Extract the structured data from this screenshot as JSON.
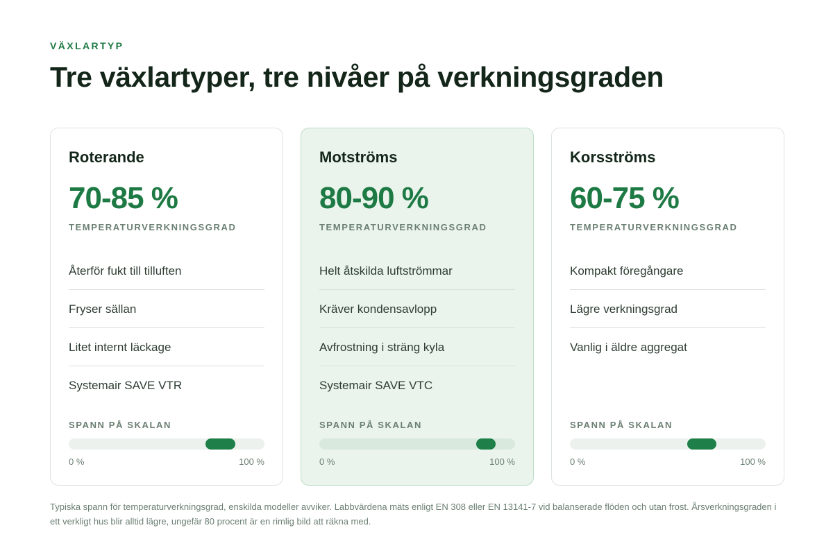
{
  "header": {
    "eyebrow": "VÄXLARTYP",
    "title": "Tre växlartyper, tre nivåer på verkningsgraden"
  },
  "cards": [
    {
      "title": "Roterande",
      "value": "70-85 %",
      "metric_label": "TEMPERATURVERKNINGSGRAD",
      "features": [
        "Återför fukt till tilluften",
        "Fryser sällan",
        "Litet internt läckage",
        "Systemair SAVE VTR"
      ],
      "scale_label": "SPANN PÅ SKALAN",
      "range_min": 70,
      "range_max": 85,
      "scale_min_label": "0 %",
      "scale_max_label": "100 %",
      "featured": false
    },
    {
      "title": "Motströms",
      "value": "80-90 %",
      "metric_label": "TEMPERATURVERKNINGSGRAD",
      "features": [
        "Helt åtskilda luftströmmar",
        "Kräver kondensavlopp",
        "Avfrostning i sträng kyla",
        "Systemair SAVE VTC"
      ],
      "scale_label": "SPANN PÅ SKALAN",
      "range_min": 80,
      "range_max": 90,
      "scale_min_label": "0 %",
      "scale_max_label": "100 %",
      "featured": true
    },
    {
      "title": "Korsströms",
      "value": "60-75 %",
      "metric_label": "TEMPERATURVERKNINGSGRAD",
      "features": [
        "Kompakt föregångare",
        "Lägre verkningsgrad",
        "Vanlig i äldre aggregat"
      ],
      "scale_label": "SPANN PÅ SKALAN",
      "range_min": 60,
      "range_max": 75,
      "scale_min_label": "0 %",
      "scale_max_label": "100 %",
      "featured": false
    }
  ],
  "footnote": "Typiska spann för temperaturverkningsgrad, enskilda modeller avviker. Labbvärdena mäts enligt EN 308 eller EN 13141-7 vid balanserade flöden och utan frost. Årsverkningsgraden i ett verkligt hus blir alltid lägre, ungefär 80 procent är en rimlig bild att räkna med.",
  "colors": {
    "accent": "#1e7a44",
    "featured_bg": "#eaf4ec",
    "text": "#14261a"
  }
}
